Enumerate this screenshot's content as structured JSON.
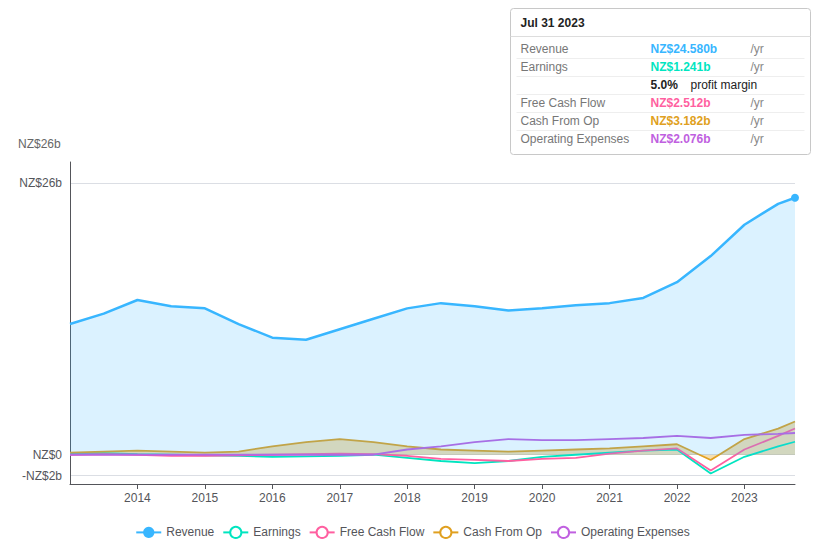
{
  "chart_data": {
    "type": "line",
    "x": [
      2013.0,
      2013.5,
      2014.0,
      2014.5,
      2015.0,
      2015.5,
      2016.0,
      2016.5,
      2017.0,
      2017.5,
      2018.0,
      2018.5,
      2019.0,
      2019.5,
      2020.0,
      2020.5,
      2021.0,
      2021.5,
      2022.0,
      2022.5,
      2023.0,
      2023.5,
      2023.75
    ],
    "xlim": [
      2013.0,
      2023.75
    ],
    "xticks": [
      2014,
      2015,
      2016,
      2017,
      2018,
      2019,
      2020,
      2021,
      2022,
      2023
    ],
    "ylim": [
      -2.8,
      28
    ],
    "yticks": [
      {
        "value": -2,
        "label": "-NZ$2b"
      },
      {
        "value": 0,
        "label": "NZ$0"
      },
      {
        "value": 26,
        "label": "NZ$26b"
      }
    ],
    "grid": true,
    "legend": "bottom",
    "series": [
      {
        "name": "Revenue",
        "type": "area",
        "color": "#38b6ff",
        "values": [
          12.5,
          13.5,
          14.8,
          14.2,
          14.0,
          12.5,
          11.2,
          11.0,
          12.0,
          13.0,
          14.0,
          14.5,
          14.2,
          13.8,
          14.0,
          14.3,
          14.5,
          15.0,
          16.5,
          19.0,
          22.0,
          24.0,
          24.58
        ]
      },
      {
        "name": "Earnings",
        "type": "line",
        "color": "#00e5c0",
        "values": [
          0.1,
          0.15,
          0.05,
          0.0,
          -0.05,
          -0.1,
          -0.2,
          -0.15,
          -0.1,
          0.0,
          -0.3,
          -0.6,
          -0.8,
          -0.6,
          -0.2,
          0.0,
          0.2,
          0.4,
          0.5,
          -1.8,
          -0.2,
          0.8,
          1.241
        ]
      },
      {
        "name": "Free Cash Flow",
        "type": "line",
        "color": "#ff5fa0",
        "values": [
          0.0,
          0.05,
          0.0,
          -0.1,
          -0.1,
          -0.05,
          0.0,
          0.05,
          0.1,
          0.05,
          -0.1,
          -0.4,
          -0.5,
          -0.6,
          -0.4,
          -0.3,
          0.1,
          0.4,
          0.6,
          -1.5,
          0.5,
          1.8,
          2.512
        ]
      },
      {
        "name": "Cash From Op",
        "type": "area",
        "color": "#e0a020",
        "values": [
          0.2,
          0.3,
          0.4,
          0.3,
          0.2,
          0.3,
          0.8,
          1.2,
          1.5,
          1.2,
          0.8,
          0.5,
          0.4,
          0.3,
          0.4,
          0.5,
          0.6,
          0.8,
          1.0,
          -0.5,
          1.5,
          2.5,
          3.182
        ]
      },
      {
        "name": "Operating Expenses",
        "type": "line",
        "color": "#c060e0",
        "values": [
          0.0,
          0.0,
          0.0,
          0.0,
          0.0,
          0.0,
          0.0,
          0.0,
          0.0,
          0.0,
          0.5,
          0.8,
          1.2,
          1.5,
          1.4,
          1.4,
          1.5,
          1.6,
          1.8,
          1.6,
          1.9,
          2.0,
          2.076
        ]
      }
    ],
    "annotations": [
      {
        "text": "NZ$26b"
      },
      {
        "text": "Jul 31 2023",
        "rows": [
          {
            "label": "Revenue",
            "text": "NZ$24.580b",
            "suffix": "/yr",
            "color": "#38b6ff"
          },
          {
            "label": "Earnings",
            "text": "NZ$1.241b",
            "suffix": "/yr",
            "color": "#00e5c0"
          },
          {
            "text": "5.0%",
            "suffix": "profit margin"
          },
          {
            "label": "Free Cash Flow",
            "text": "NZ$2.512b",
            "suffix": "/yr",
            "color": "#ff5fa0"
          },
          {
            "label": "Cash From Op",
            "text": "NZ$3.182b",
            "suffix": "/yr",
            "color": "#e0a020"
          },
          {
            "label": "Operating Expenses",
            "text": "NZ$2.076b",
            "suffix": "/yr",
            "color": "#c060e0"
          }
        ]
      }
    ]
  }
}
